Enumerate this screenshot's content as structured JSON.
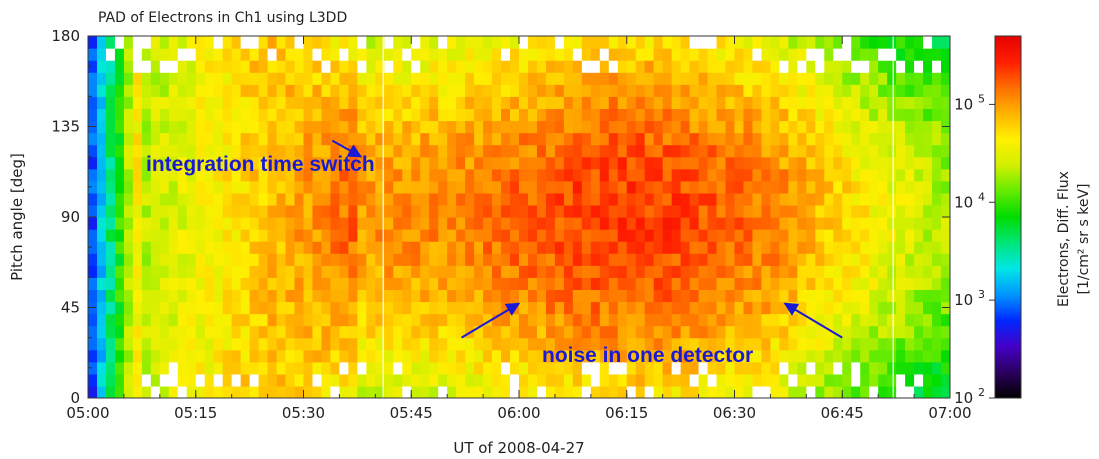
{
  "chart_data": {
    "type": "heatmap",
    "title": "PAD of Electrons in Ch1 using L3DD",
    "xlabel": "UT of 2008-04-27",
    "ylabel": "Pitch angle [deg]",
    "x_range": [
      "05:00",
      "07:00"
    ],
    "x_ticks": [
      "05:00",
      "05:15",
      "05:30",
      "05:45",
      "06:00",
      "06:15",
      "06:30",
      "06:45",
      "07:00"
    ],
    "ylim": [
      0,
      180
    ],
    "y_ticks": [
      "0",
      "45",
      "90",
      "135",
      "180"
    ],
    "colorbar": {
      "label_line1": "Electrons, Diff. Flux",
      "label_line2": "[1/cm² sr s keV]",
      "scale": "log",
      "range": [
        100,
        500000
      ],
      "ticks": [
        {
          "base": "10",
          "exp": "2",
          "value": 100
        },
        {
          "base": "10",
          "exp": "3",
          "value": 1000
        },
        {
          "base": "10",
          "exp": "4",
          "value": 10000
        },
        {
          "base": "10",
          "exp": "5",
          "value": 100000
        }
      ],
      "colormap": [
        "#000000",
        "#2b0060",
        "#4400c8",
        "#0028ff",
        "#0096ff",
        "#00e6e6",
        "#00e678",
        "#00dc00",
        "#64eb00",
        "#d2f000",
        "#fff000",
        "#ffb400",
        "#ff6e00",
        "#ff1e00",
        "#e60000"
      ]
    },
    "annotations": [
      {
        "text": "integration time switch",
        "time": "05:35",
        "pitch": 110,
        "color": "#1a1ad6",
        "arrow_from": {
          "time": "05:34",
          "pitch": 128
        },
        "arrow_to": {
          "time": "05:38",
          "pitch": 120
        }
      },
      {
        "text": "noise in one detector",
        "time": "06:01",
        "pitch": 32,
        "color": "#1a1ad6",
        "arrows": [
          {
            "from": {
              "time": "05:52",
              "pitch": 30
            },
            "to": {
              "time": "06:00",
              "pitch": 47
            }
          },
          {
            "from": {
              "time": "06:45",
              "pitch": 30
            },
            "to": {
              "time": "06:37",
              "pitch": 47
            }
          }
        ]
      }
    ]
  }
}
